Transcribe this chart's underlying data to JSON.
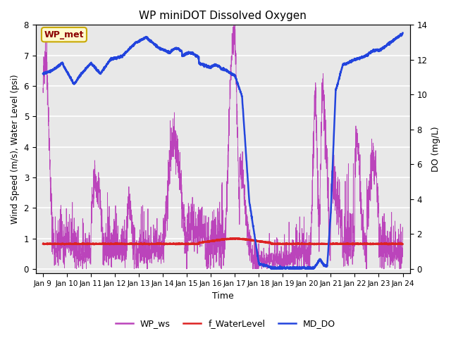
{
  "title": "WP miniDOT Dissolved Oxygen",
  "xlabel": "Time",
  "ylabel_left": "Wind Speed (m/s), Water Level (psi)",
  "ylabel_right": "DO (mg/L)",
  "annotation_text": "WP_met",
  "annotation_color": "#8B0000",
  "annotation_bg": "#FFFACD",
  "annotation_border": "#C8A800",
  "xlim_start": 8.7,
  "xlim_end": 24.3,
  "ylim_left": [
    -0.15,
    8.0
  ],
  "ylim_right": [
    -0.26,
    14.0
  ],
  "yticks_left": [
    0.0,
    1.0,
    2.0,
    3.0,
    4.0,
    5.0,
    6.0,
    7.0,
    8.0
  ],
  "yticks_right": [
    0,
    2,
    4,
    6,
    8,
    10,
    12,
    14
  ],
  "xtick_labels": [
    "Jan 9",
    "Jan 10",
    "Jan 11",
    "Jan 12",
    "Jan 13",
    "Jan 14",
    "Jan 15",
    "Jan 16",
    "Jan 17",
    "Jan 18",
    "Jan 19",
    "Jan 20",
    "Jan 21",
    "Jan 22",
    "Jan 23",
    "Jan 24"
  ],
  "xtick_positions": [
    9,
    10,
    11,
    12,
    13,
    14,
    15,
    16,
    17,
    18,
    19,
    20,
    21,
    22,
    23,
    24
  ],
  "color_ws": "#BB44BB",
  "color_wl": "#DD2222",
  "color_do": "#2244DD",
  "legend_labels": [
    "WP_ws",
    "f_WaterLevel",
    "MD_DO"
  ],
  "bg_color": "#E8E8E8",
  "grid_color": "white",
  "figsize": [
    6.4,
    4.8
  ],
  "dpi": 100
}
